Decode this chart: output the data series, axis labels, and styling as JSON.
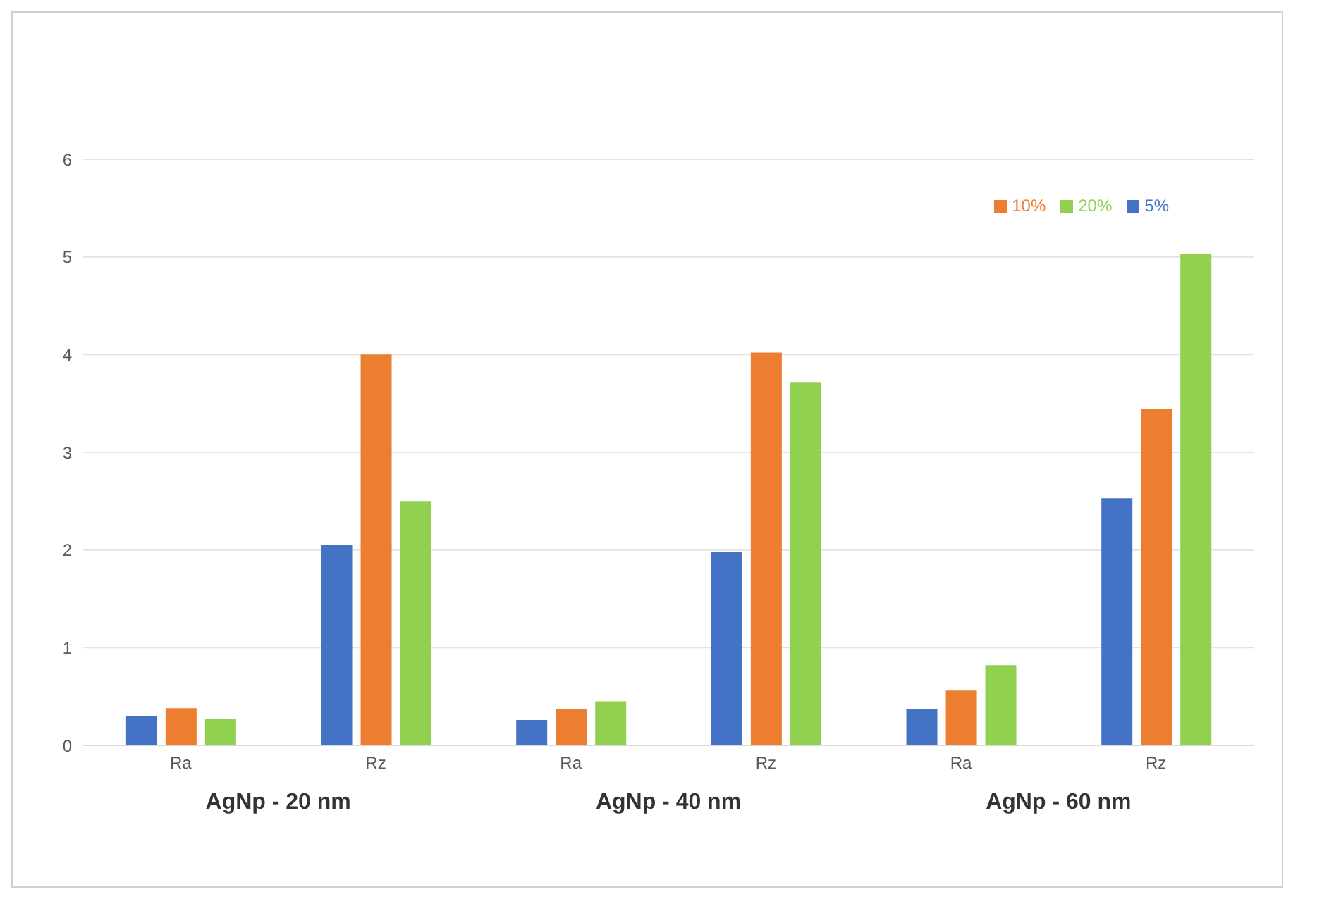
{
  "chart_data": {
    "type": "bar",
    "categories": [
      "Ra",
      "Rz",
      "Ra",
      "Rz",
      "Ra",
      "Rz"
    ],
    "series": [
      {
        "name": "5%",
        "color": "#4472c4",
        "values": [
          0.3,
          2.05,
          0.26,
          1.98,
          0.37,
          2.53
        ]
      },
      {
        "name": "10%",
        "color": "#ed7d31",
        "values": [
          0.38,
          4.0,
          0.37,
          4.02,
          0.56,
          3.44
        ]
      },
      {
        "name": "20%",
        "color": "#92d050",
        "values": [
          0.27,
          2.5,
          0.45,
          3.72,
          0.82,
          5.03
        ]
      }
    ],
    "ylim": [
      0,
      6
    ],
    "yticks": [
      0,
      1,
      2,
      3,
      4,
      5,
      6
    ],
    "grid": "y",
    "legend": "top right",
    "annotations": [
      "AgNp - 20 nm",
      "AgNp - 40 nm",
      "AgNp - 60 nm"
    ]
  }
}
